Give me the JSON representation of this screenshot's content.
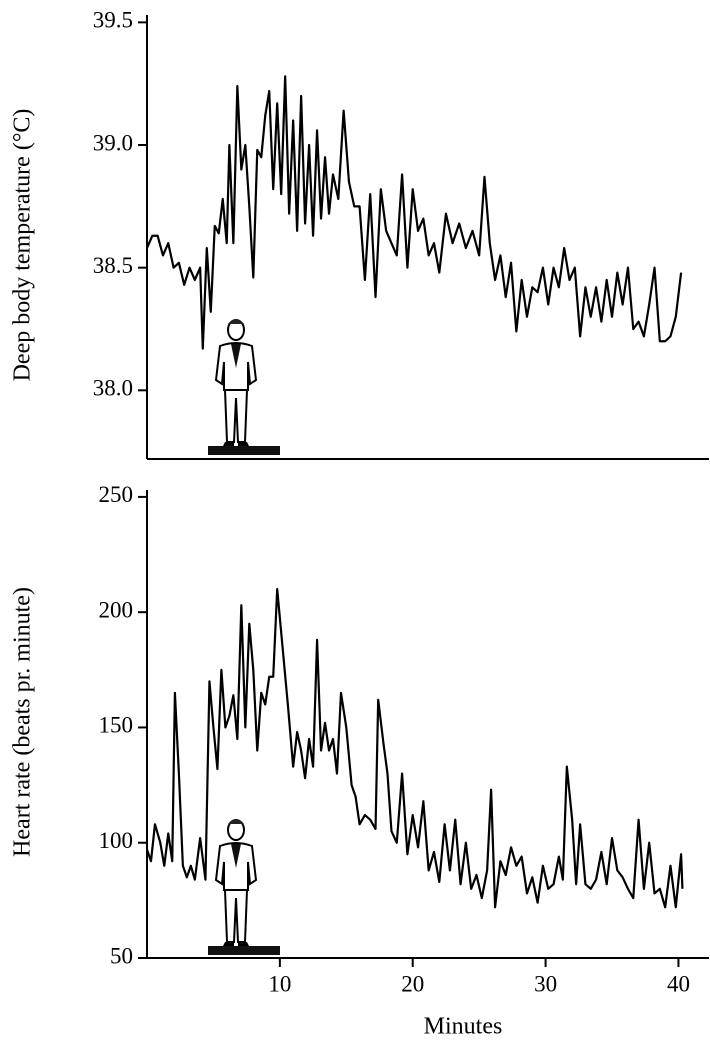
{
  "chart_data": [
    {
      "type": "line",
      "ylabel": "Deep body temperature (°C)",
      "color": "#000000",
      "xlim": [
        0,
        42.3
      ],
      "ylim": [
        37.72,
        39.53
      ],
      "yticks": [
        {
          "value": 38,
          "label": "38.0"
        },
        {
          "value": 38.5,
          "label": "38.5"
        },
        {
          "value": 39,
          "label": "39.0"
        },
        {
          "value": 39.5,
          "label": "39.5"
        }
      ],
      "x": [
        0,
        0.4,
        0.8,
        1.2,
        1.6,
        2.0,
        2.4,
        2.8,
        3.2,
        3.6,
        4.0,
        4.2,
        4.5,
        4.8,
        5.1,
        5.4,
        5.7,
        6.0,
        6.2,
        6.5,
        6.8,
        7.1,
        7.4,
        7.7,
        8.0,
        8.3,
        8.6,
        8.9,
        9.2,
        9.5,
        9.8,
        10.1,
        10.4,
        10.7,
        11.0,
        11.3,
        11.6,
        11.9,
        12.2,
        12.5,
        12.8,
        13.1,
        13.4,
        13.7,
        14.0,
        14.4,
        14.8,
        15.2,
        15.6,
        16.0,
        16.4,
        16.8,
        17.2,
        17.6,
        18.0,
        18.4,
        18.8,
        19.2,
        19.6,
        20.0,
        20.4,
        20.8,
        21.2,
        21.6,
        22.0,
        22.5,
        23.0,
        23.5,
        24.0,
        24.5,
        25.0,
        25.4,
        25.8,
        26.2,
        26.6,
        27.0,
        27.4,
        27.8,
        28.2,
        28.6,
        29.0,
        29.4,
        29.8,
        30.2,
        30.6,
        31.0,
        31.4,
        31.8,
        32.2,
        32.6,
        33.0,
        33.4,
        33.8,
        34.2,
        34.6,
        35.0,
        35.4,
        35.8,
        36.2,
        36.6,
        37.0,
        37.4,
        37.8,
        38.2,
        38.6,
        39.0,
        39.4,
        39.8,
        40.2
      ],
      "values": [
        38.58,
        38.63,
        38.63,
        38.55,
        38.6,
        38.5,
        38.52,
        38.43,
        38.5,
        38.45,
        38.5,
        38.17,
        38.58,
        38.32,
        38.67,
        38.64,
        38.78,
        38.6,
        39.0,
        38.6,
        39.24,
        38.9,
        39.0,
        38.75,
        38.46,
        38.98,
        38.95,
        39.12,
        39.22,
        38.82,
        39.17,
        38.8,
        39.28,
        38.72,
        39.1,
        38.65,
        39.2,
        38.68,
        39.0,
        38.63,
        39.06,
        38.7,
        38.95,
        38.72,
        38.88,
        38.78,
        39.14,
        38.85,
        38.75,
        38.75,
        38.45,
        38.8,
        38.38,
        38.82,
        38.65,
        38.6,
        38.55,
        38.88,
        38.5,
        38.82,
        38.65,
        38.7,
        38.55,
        38.6,
        38.48,
        38.72,
        38.6,
        38.68,
        38.58,
        38.65,
        38.55,
        38.87,
        38.6,
        38.45,
        38.55,
        38.38,
        38.52,
        38.24,
        38.45,
        38.3,
        38.42,
        38.4,
        38.5,
        38.35,
        38.5,
        38.42,
        38.58,
        38.45,
        38.5,
        38.22,
        38.42,
        38.3,
        38.42,
        38.28,
        38.45,
        38.3,
        38.48,
        38.35,
        38.5,
        38.25,
        38.28,
        38.22,
        38.35,
        38.5,
        38.2,
        38.2,
        38.22,
        38.3,
        38.48
      ]
    },
    {
      "type": "line",
      "ylabel": "Heart rate (beats pr. minute)",
      "xlabel": "Minutes",
      "color": "#000000",
      "xlim": [
        0,
        42.3
      ],
      "ylim": [
        50,
        253
      ],
      "yticks": [
        50,
        100,
        150,
        200,
        250
      ],
      "xticks": [
        10,
        20,
        30,
        40
      ],
      "x": [
        0,
        0.3,
        0.6,
        1.0,
        1.3,
        1.6,
        1.9,
        2.1,
        2.4,
        2.7,
        3.0,
        3.3,
        3.6,
        4.0,
        4.4,
        4.7,
        5.0,
        5.3,
        5.6,
        5.9,
        6.2,
        6.5,
        6.8,
        7.1,
        7.4,
        7.7,
        8.0,
        8.3,
        8.6,
        8.9,
        9.2,
        9.5,
        9.8,
        10.2,
        10.6,
        11.0,
        11.3,
        11.6,
        11.9,
        12.2,
        12.5,
        12.8,
        13.1,
        13.4,
        13.7,
        14.0,
        14.3,
        14.6,
        15.0,
        15.4,
        15.7,
        16.0,
        16.4,
        16.8,
        17.2,
        17.4,
        17.8,
        18.1,
        18.4,
        18.8,
        19.2,
        19.6,
        20.0,
        20.4,
        20.8,
        21.2,
        21.6,
        22.0,
        22.4,
        22.8,
        23.2,
        23.6,
        24.0,
        24.4,
        24.8,
        25.2,
        25.6,
        25.9,
        26.2,
        26.6,
        27.0,
        27.4,
        27.8,
        28.2,
        28.6,
        29.0,
        29.4,
        29.8,
        30.2,
        30.6,
        31.0,
        31.3,
        31.6,
        32.0,
        32.3,
        32.6,
        33.0,
        33.4,
        33.8,
        34.2,
        34.6,
        35.0,
        35.4,
        35.8,
        36.2,
        36.6,
        37.0,
        37.4,
        37.8,
        38.2,
        38.6,
        39.0,
        39.4,
        39.8,
        40.2,
        40.3
      ],
      "values": [
        97,
        92,
        108,
        100,
        90,
        104,
        92,
        165,
        130,
        90,
        85,
        90,
        84,
        102,
        84,
        170,
        150,
        132,
        175,
        150,
        155,
        164,
        145,
        203,
        150,
        195,
        175,
        140,
        165,
        160,
        172,
        172,
        210,
        185,
        160,
        133,
        148,
        140,
        128,
        145,
        133,
        188,
        140,
        152,
        140,
        145,
        130,
        165,
        150,
        125,
        120,
        108,
        112,
        110,
        106,
        162,
        143,
        130,
        105,
        100,
        130,
        95,
        112,
        98,
        118,
        88,
        96,
        83,
        108,
        88,
        110,
        82,
        100,
        80,
        86,
        76,
        88,
        123,
        72,
        92,
        86,
        98,
        90,
        94,
        78,
        85,
        74,
        90,
        80,
        82,
        94,
        84,
        133,
        110,
        82,
        108,
        82,
        80,
        84,
        96,
        82,
        102,
        88,
        85,
        80,
        76,
        110,
        80,
        100,
        78,
        80,
        72,
        90,
        72,
        95,
        80
      ]
    }
  ]
}
